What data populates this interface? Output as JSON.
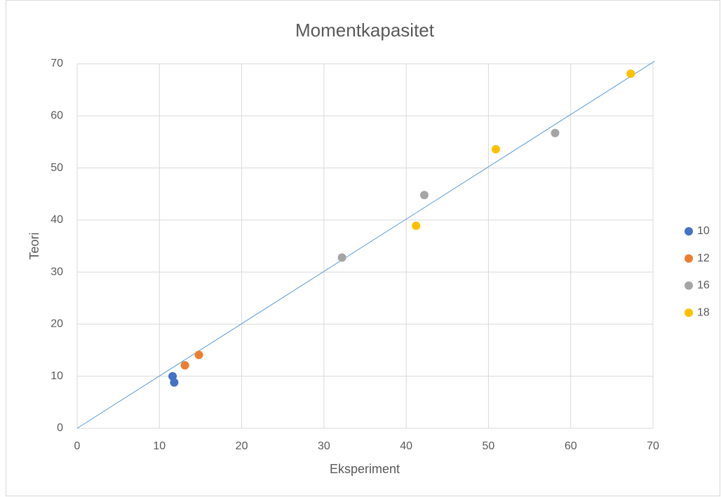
{
  "chart_data": {
    "type": "scatter",
    "title": "Momentkapasitet",
    "x_label": "Eksperiment",
    "y_label": "Teori",
    "xlim": [
      0,
      70
    ],
    "ylim": [
      0,
      70
    ],
    "xticks": [
      0,
      10,
      20,
      30,
      40,
      50,
      60,
      70
    ],
    "yticks": [
      0,
      10,
      20,
      30,
      40,
      50,
      60,
      70
    ],
    "grid": true,
    "legend": "right",
    "series": [
      {
        "name": "10",
        "color": "#4472c4",
        "x": [
          11.6,
          11.8
        ],
        "values": [
          10.0,
          8.8
        ]
      },
      {
        "name": "12",
        "color": "#ed7d31",
        "x": [
          13.1,
          14.8
        ],
        "values": [
          12.1,
          14.1
        ]
      },
      {
        "name": "16",
        "color": "#a5a5a5",
        "x": [
          32.2,
          42.2,
          58.1
        ],
        "values": [
          32.8,
          44.8,
          56.7
        ]
      },
      {
        "name": "18",
        "color": "#ffc000",
        "x": [
          41.2,
          50.9,
          67.3
        ],
        "values": [
          38.9,
          53.6,
          68.1
        ]
      }
    ],
    "reference_line": {
      "color": "#5b9bd5",
      "x": [
        0,
        70.2
      ],
      "values": [
        0,
        70.5
      ]
    }
  }
}
